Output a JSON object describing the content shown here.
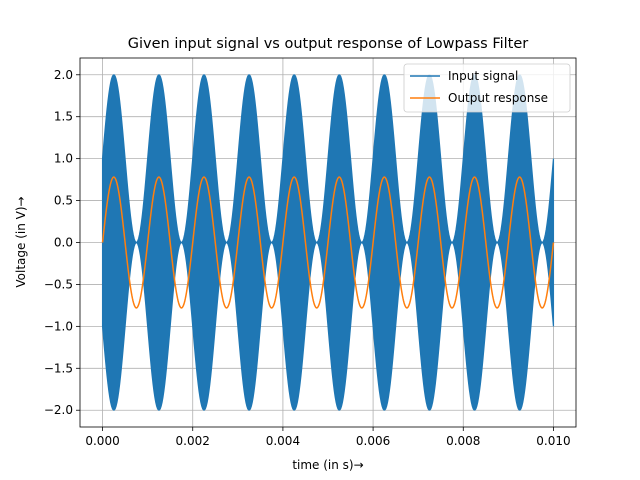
{
  "chart_data": {
    "type": "line",
    "title": "Given input signal vs output response of Lowpass Filter",
    "xlabel": "time (in s)→",
    "ylabel": "Voltage (in V)→",
    "xlim": [
      -0.0005,
      0.0105
    ],
    "ylim": [
      -2.2,
      2.2
    ],
    "grid": true,
    "legend_position": "top-right",
    "x_ticks": [
      0.0,
      0.002,
      0.004,
      0.006,
      0.008,
      0.01
    ],
    "x_tick_labels": [
      "0.000",
      "0.002",
      "0.004",
      "0.006",
      "0.008",
      "0.010"
    ],
    "y_ticks": [
      -2.0,
      -1.5,
      -1.0,
      -0.5,
      0.0,
      0.5,
      1.0,
      1.5,
      2.0
    ],
    "y_tick_labels": [
      "−2.0",
      "−1.5",
      "−1.0",
      "−0.5",
      "0.0",
      "0.5",
      "1.0",
      "1.5",
      "2.0"
    ],
    "series": [
      {
        "name": "Input signal",
        "color": "#1f77b4",
        "x_range": [
          0.0,
          0.01
        ],
        "envelope_upper": {
          "min": 0.0,
          "max": 2.0,
          "at_start": 1.0,
          "peaks": [
            0.00025,
            0.00125,
            0.00225,
            0.00325,
            0.00425,
            0.00525,
            0.00625,
            0.00725,
            0.00825,
            0.00925
          ]
        },
        "envelope_lower": {
          "min": -2.0,
          "max": 0.0,
          "at_start": -1.0
        }
      },
      {
        "name": "Output response",
        "color": "#ff7f0e",
        "x": [
          0.0,
          0.00025,
          0.0005,
          0.00075,
          0.001,
          0.00125,
          0.0015,
          0.00175,
          0.002,
          0.00225,
          0.0025,
          0.00275,
          0.003,
          0.00325,
          0.0035,
          0.00375,
          0.004,
          0.00425,
          0.0045,
          0.00475,
          0.005,
          0.00525,
          0.0055,
          0.00575,
          0.006,
          0.00625,
          0.0065,
          0.00675,
          0.007,
          0.00725,
          0.0075,
          0.00775,
          0.008,
          0.00825,
          0.0085,
          0.00875,
          0.009,
          0.00925,
          0.0095,
          0.00975,
          0.01
        ],
        "y": [
          0.0,
          0.78,
          0.0,
          -0.78,
          0.0,
          0.78,
          0.0,
          -0.78,
          0.0,
          0.78,
          0.0,
          -0.78,
          0.0,
          0.78,
          0.0,
          -0.78,
          0.0,
          0.78,
          0.0,
          -0.78,
          0.0,
          0.78,
          0.0,
          -0.78,
          0.0,
          0.78,
          0.0,
          -0.78,
          0.0,
          0.78,
          0.0,
          -0.78,
          0.0,
          0.78,
          0.0,
          -0.78,
          0.0,
          0.78,
          0.0,
          -0.78,
          -0.1
        ]
      }
    ]
  }
}
